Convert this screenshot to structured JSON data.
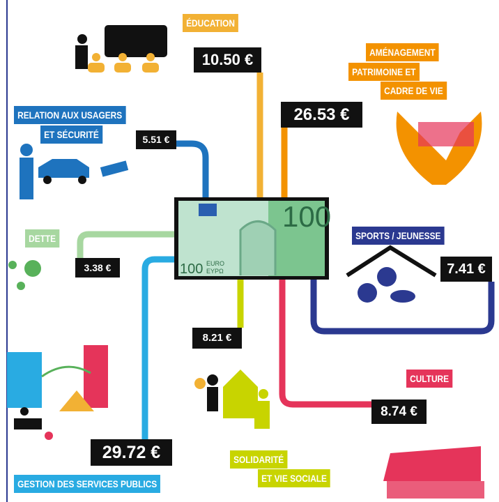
{
  "items": [
    {
      "label": [
        "ÉDUCATION"
      ],
      "amount": "10.50 €"
    },
    {
      "label": [
        "AMÉNAGEMENT",
        "PATRIMOINE ET",
        "CADRE DE VIE"
      ],
      "amount": "26.53 €"
    },
    {
      "label": [
        "RELATION AUX USAGERS",
        "ET SÉCURITÉ"
      ],
      "amount": "5.51 €"
    },
    {
      "label": [
        "DETTE"
      ],
      "amount": "3.38 €"
    },
    {
      "label": [
        "SPORTS / JEUNESSE"
      ],
      "amount": "7.41 €"
    },
    {
      "label": [
        "CULTURE"
      ],
      "amount": "8.74 €"
    },
    {
      "label": [
        "SOLIDARITÉ",
        "ET VIE SOCIALE"
      ],
      "amount": "8.21 €"
    },
    {
      "label": [
        "GESTION DES SERVICES PUBLICS"
      ],
      "amount": "29.72 €"
    }
  ],
  "banknote": {
    "denomination": "100",
    "corner": "100",
    "currency": [
      "EURO",
      "ΕΥΡΩ"
    ]
  }
}
